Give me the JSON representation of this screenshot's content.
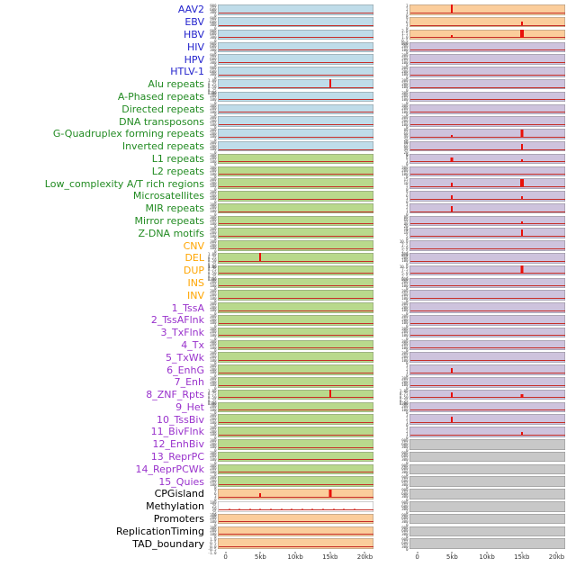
{
  "palette": {
    "label": {
      "virus": "#2424CD",
      "repeat": "#228B22",
      "sv": "#FFA500",
      "state": "#9932CC",
      "other": "#000000"
    },
    "track": {
      "blue": "#BFDCE9",
      "green": "#B9D98C",
      "orange": "#FBCD9B",
      "purple": "#CEC3DD",
      "gray": "#C8C8C8",
      "white": "#FFFFFF"
    },
    "spike": "#E91009",
    "baseline": "#C62E28"
  },
  "ytick_sets": {
    "c9": [
      "900",
      "600",
      "300",
      "0"
    ],
    "c3": [
      "300",
      "200",
      "100",
      "0"
    ],
    "p": [
      "1.00",
      "0.75",
      "0.50",
      "0.25",
      "0.00"
    ],
    "s3": [
      "3",
      "2",
      "1",
      "0"
    ],
    "s9": [
      "9",
      "6",
      "3",
      "0"
    ],
    "d2": [
      "2.0",
      "1.5",
      "1.0",
      "0.5",
      "0.0"
    ],
    "g8": [
      "80",
      "60",
      "40",
      "20",
      "0"
    ],
    "s15": [
      "15",
      "10",
      "5",
      "0"
    ],
    "d10": [
      "10.0",
      "7.5",
      "5.0",
      "2.5",
      "0.0"
    ],
    "m": [
      "100",
      "75",
      "50",
      "25",
      "0"
    ],
    "pm": [
      "1.0",
      "0.5",
      "0.0",
      "-0.5",
      "-1.0"
    ]
  },
  "chart_data": {
    "type": "line",
    "title": "",
    "xlabel": "",
    "ylabel": "",
    "columns": 2,
    "x_ticks": [
      "0",
      "5kb",
      "10kb",
      "15kb",
      "20kb"
    ],
    "x_range_kb": [
      0,
      20
    ],
    "tracks": [
      {
        "label": "AAV2",
        "cat": "virus",
        "left": {
          "bg": "blue",
          "yt": "c9",
          "spikes": []
        },
        "right": {
          "bg": "orange",
          "yt": "s3",
          "spikes": [
            {
              "kb": 5,
              "h": 1.0,
              "w": 2
            }
          ]
        }
      },
      {
        "label": "EBV",
        "cat": "virus",
        "left": {
          "bg": "blue",
          "yt": "c9",
          "spikes": []
        },
        "right": {
          "bg": "orange",
          "yt": "s9",
          "spikes": [
            {
              "kb": 15,
              "h": 0.38,
              "w": 2
            }
          ]
        }
      },
      {
        "label": "HBV",
        "cat": "virus",
        "left": {
          "bg": "blue",
          "yt": "c9",
          "spikes": []
        },
        "right": {
          "bg": "orange",
          "yt": "d2",
          "spikes": [
            {
              "kb": 5,
              "h": 0.25,
              "w": 2
            },
            {
              "kb": 15,
              "h": 1.0,
              "w": 4
            }
          ]
        }
      },
      {
        "label": "HIV",
        "cat": "virus",
        "left": {
          "bg": "blue",
          "yt": "c9",
          "spikes": []
        },
        "right": {
          "bg": "purple",
          "yt": "c3",
          "spikes": []
        }
      },
      {
        "label": "HPV",
        "cat": "virus",
        "left": {
          "bg": "blue",
          "yt": "c9",
          "spikes": []
        },
        "right": {
          "bg": "purple",
          "yt": "c3",
          "spikes": []
        }
      },
      {
        "label": "HTLV-1",
        "cat": "virus",
        "left": {
          "bg": "blue",
          "yt": "c9",
          "spikes": []
        },
        "right": {
          "bg": "purple",
          "yt": "c3",
          "spikes": []
        }
      },
      {
        "label": "Alu repeats",
        "cat": "repeat",
        "left": {
          "bg": "blue",
          "yt": "p",
          "spikes": [
            {
              "kb": 15,
              "h": 1.0,
              "w": 2
            }
          ]
        },
        "right": {
          "bg": "purple",
          "yt": "c3",
          "spikes": []
        }
      },
      {
        "label": "A-Phased repeats",
        "cat": "repeat",
        "left": {
          "bg": "blue",
          "yt": "c3",
          "spikes": []
        },
        "right": {
          "bg": "purple",
          "yt": "c3",
          "spikes": []
        }
      },
      {
        "label": "Directed repeats",
        "cat": "repeat",
        "left": {
          "bg": "blue",
          "yt": "c3",
          "spikes": []
        },
        "right": {
          "bg": "purple",
          "yt": "c3",
          "spikes": []
        }
      },
      {
        "label": "DNA transposons",
        "cat": "repeat",
        "left": {
          "bg": "blue",
          "yt": "c3",
          "spikes": []
        },
        "right": {
          "bg": "purple",
          "yt": "c3",
          "spikes": []
        }
      },
      {
        "label": "G-Quadruplex forming repeats",
        "cat": "repeat",
        "left": {
          "bg": "blue",
          "yt": "c3",
          "spikes": []
        },
        "right": {
          "bg": "purple",
          "yt": "g8",
          "spikes": [
            {
              "kb": 5,
              "h": 0.22,
              "w": 2
            },
            {
              "kb": 15,
              "h": 0.85,
              "w": 3
            }
          ]
        }
      },
      {
        "label": "Inverted repeats",
        "cat": "repeat",
        "left": {
          "bg": "blue",
          "yt": "c3",
          "spikes": []
        },
        "right": {
          "bg": "purple",
          "yt": "g8",
          "spikes": [
            {
              "kb": 15,
              "h": 0.6,
              "w": 2
            }
          ]
        }
      },
      {
        "label": "L1 repeats",
        "cat": "repeat",
        "left": {
          "bg": "green",
          "yt": "c3",
          "spikes": []
        },
        "right": {
          "bg": "purple",
          "yt": "s9",
          "spikes": [
            {
              "kb": 5,
              "h": 0.55,
              "w": 3
            },
            {
              "kb": 15,
              "h": 0.25,
              "w": 2
            }
          ]
        }
      },
      {
        "label": "L2 repeats",
        "cat": "repeat",
        "left": {
          "bg": "green",
          "yt": "c3",
          "spikes": []
        },
        "right": {
          "bg": "purple",
          "yt": "c3",
          "spikes": []
        }
      },
      {
        "label": "Low_complexity A/T rich regions",
        "cat": "repeat",
        "left": {
          "bg": "green",
          "yt": "c3",
          "spikes": []
        },
        "right": {
          "bg": "purple",
          "yt": "s15",
          "spikes": [
            {
              "kb": 5,
              "h": 0.5,
              "w": 2
            },
            {
              "kb": 15,
              "h": 0.9,
              "w": 4
            }
          ]
        }
      },
      {
        "label": "Microsatellites",
        "cat": "repeat",
        "left": {
          "bg": "green",
          "yt": "c3",
          "spikes": []
        },
        "right": {
          "bg": "purple",
          "yt": "s9",
          "spikes": [
            {
              "kb": 5,
              "h": 0.45,
              "w": 2
            },
            {
              "kb": 15,
              "h": 0.3,
              "w": 2
            }
          ]
        }
      },
      {
        "label": "MIR repeats",
        "cat": "repeat",
        "left": {
          "bg": "green",
          "yt": "c3",
          "spikes": []
        },
        "right": {
          "bg": "purple",
          "yt": "s3",
          "spikes": [
            {
              "kb": 5,
              "h": 0.65,
              "w": 2
            }
          ]
        }
      },
      {
        "label": "Mirror repeats",
        "cat": "repeat",
        "left": {
          "bg": "green",
          "yt": "c3",
          "spikes": []
        },
        "right": {
          "bg": "purple",
          "yt": "g8",
          "spikes": [
            {
              "kb": 15,
              "h": 0.28,
              "w": 2
            }
          ]
        }
      },
      {
        "label": "Z-DNA motifs",
        "cat": "repeat",
        "left": {
          "bg": "green",
          "yt": "c3",
          "spikes": []
        },
        "right": {
          "bg": "purple",
          "yt": "s15",
          "spikes": [
            {
              "kb": 15,
              "h": 0.8,
              "w": 2
            }
          ]
        }
      },
      {
        "label": "CNV",
        "cat": "sv",
        "left": {
          "bg": "green",
          "yt": "c3",
          "spikes": []
        },
        "right": {
          "bg": "purple",
          "yt": "d10",
          "spikes": []
        }
      },
      {
        "label": "DEL",
        "cat": "sv",
        "left": {
          "bg": "green",
          "yt": "p",
          "spikes": [
            {
              "kb": 5,
              "h": 1.0,
              "w": 2
            }
          ]
        },
        "right": {
          "bg": "purple",
          "yt": "c3",
          "spikes": []
        }
      },
      {
        "label": "DUP",
        "cat": "sv",
        "left": {
          "bg": "green",
          "yt": "p",
          "spikes": []
        },
        "right": {
          "bg": "purple",
          "yt": "d10",
          "spikes": [
            {
              "kb": 15,
              "h": 1.0,
              "w": 3
            }
          ]
        }
      },
      {
        "label": "INS",
        "cat": "sv",
        "left": {
          "bg": "green",
          "yt": "c3",
          "spikes": []
        },
        "right": {
          "bg": "purple",
          "yt": "c3",
          "spikes": []
        }
      },
      {
        "label": "INV",
        "cat": "sv",
        "left": {
          "bg": "green",
          "yt": "c3",
          "spikes": []
        },
        "right": {
          "bg": "purple",
          "yt": "c3",
          "spikes": []
        }
      },
      {
        "label": "1_TssA",
        "cat": "state",
        "left": {
          "bg": "green",
          "yt": "c3",
          "spikes": []
        },
        "right": {
          "bg": "purple",
          "yt": "c3",
          "spikes": []
        }
      },
      {
        "label": "2_TssAFlnk",
        "cat": "state",
        "left": {
          "bg": "green",
          "yt": "c3",
          "spikes": []
        },
        "right": {
          "bg": "purple",
          "yt": "c3",
          "spikes": []
        }
      },
      {
        "label": "3_TxFlnk",
        "cat": "state",
        "left": {
          "bg": "green",
          "yt": "c3",
          "spikes": []
        },
        "right": {
          "bg": "purple",
          "yt": "c3",
          "spikes": []
        }
      },
      {
        "label": "4_Tx",
        "cat": "state",
        "left": {
          "bg": "green",
          "yt": "c3",
          "spikes": []
        },
        "right": {
          "bg": "purple",
          "yt": "c3",
          "spikes": []
        }
      },
      {
        "label": "5_TxWk",
        "cat": "state",
        "left": {
          "bg": "green",
          "yt": "c3",
          "spikes": []
        },
        "right": {
          "bg": "purple",
          "yt": "c3",
          "spikes": []
        }
      },
      {
        "label": "6_EnhG",
        "cat": "state",
        "left": {
          "bg": "green",
          "yt": "c3",
          "spikes": []
        },
        "right": {
          "bg": "purple",
          "yt": "s3",
          "spikes": [
            {
              "kb": 5,
              "h": 0.6,
              "w": 2
            }
          ]
        }
      },
      {
        "label": "7_Enh",
        "cat": "state",
        "left": {
          "bg": "green",
          "yt": "c3",
          "spikes": []
        },
        "right": {
          "bg": "purple",
          "yt": "c3",
          "spikes": []
        }
      },
      {
        "label": "8_ZNF_Rpts",
        "cat": "state",
        "left": {
          "bg": "green",
          "yt": "p",
          "spikes": [
            {
              "kb": 15,
              "h": 0.9,
              "w": 2
            }
          ]
        },
        "right": {
          "bg": "purple",
          "yt": "p",
          "spikes": [
            {
              "kb": 5,
              "h": 0.65,
              "w": 2
            },
            {
              "kb": 15,
              "h": 0.4,
              "w": 3
            }
          ]
        }
      },
      {
        "label": "9_Het",
        "cat": "state",
        "left": {
          "bg": "green",
          "yt": "c3",
          "spikes": []
        },
        "right": {
          "bg": "purple",
          "yt": "c3",
          "spikes": []
        }
      },
      {
        "label": "10_TssBiv",
        "cat": "state",
        "left": {
          "bg": "green",
          "yt": "c3",
          "spikes": []
        },
        "right": {
          "bg": "purple",
          "yt": "s3",
          "spikes": [
            {
              "kb": 5,
              "h": 0.65,
              "w": 2
            }
          ]
        }
      },
      {
        "label": "11_BivFlnk",
        "cat": "state",
        "left": {
          "bg": "green",
          "yt": "c3",
          "spikes": []
        },
        "right": {
          "bg": "purple",
          "yt": "s3",
          "spikes": [
            {
              "kb": 15,
              "h": 0.3,
              "w": 2
            }
          ]
        }
      },
      {
        "label": "12_EnhBiv",
        "cat": "state",
        "left": {
          "bg": "green",
          "yt": "c3",
          "spikes": []
        },
        "right": {
          "bg": "gray",
          "yt": "c9",
          "spikes": []
        }
      },
      {
        "label": "13_ReprPC",
        "cat": "state",
        "left": {
          "bg": "green",
          "yt": "c3",
          "spikes": []
        },
        "right": {
          "bg": "gray",
          "yt": "c9",
          "spikes": []
        }
      },
      {
        "label": "14_ReprPCWk",
        "cat": "state",
        "left": {
          "bg": "green",
          "yt": "c3",
          "spikes": []
        },
        "right": {
          "bg": "gray",
          "yt": "c9",
          "spikes": []
        }
      },
      {
        "label": "15_Quies",
        "cat": "state",
        "left": {
          "bg": "green",
          "yt": "c3",
          "spikes": []
        },
        "right": {
          "bg": "gray",
          "yt": "c9",
          "spikes": []
        }
      },
      {
        "label": "CPGisland",
        "cat": "other",
        "left": {
          "bg": "orange",
          "yt": "s9",
          "spikes": [
            {
              "kb": 5,
              "h": 0.45,
              "w": 2
            },
            {
              "kb": 15,
              "h": 0.85,
              "w": 3
            }
          ]
        },
        "right": {
          "bg": "gray",
          "yt": "c9",
          "spikes": []
        }
      },
      {
        "label": "Methylation",
        "cat": "other",
        "left": {
          "bg": "white",
          "yt": "m",
          "spikes": [
            {
              "kb": 0.5,
              "h": 0.12,
              "w": 1
            },
            {
              "kb": 2,
              "h": 0.1,
              "w": 1
            },
            {
              "kb": 3.5,
              "h": 0.14,
              "w": 1
            },
            {
              "kb": 5,
              "h": 0.1,
              "w": 1
            },
            {
              "kb": 6.5,
              "h": 0.12,
              "w": 1
            },
            {
              "kb": 8,
              "h": 0.1,
              "w": 1
            },
            {
              "kb": 9.5,
              "h": 0.14,
              "w": 1
            },
            {
              "kb": 11,
              "h": 0.1,
              "w": 1
            },
            {
              "kb": 12.5,
              "h": 0.12,
              "w": 1
            },
            {
              "kb": 14,
              "h": 0.1,
              "w": 1
            },
            {
              "kb": 15.5,
              "h": 0.14,
              "w": 1
            },
            {
              "kb": 17,
              "h": 0.1,
              "w": 1
            },
            {
              "kb": 18.5,
              "h": 0.12,
              "w": 1
            }
          ]
        },
        "right": {
          "bg": "gray",
          "yt": "c9",
          "spikes": []
        }
      },
      {
        "label": "Promoters",
        "cat": "other",
        "left": {
          "bg": "orange",
          "yt": "c3",
          "spikes": []
        },
        "right": {
          "bg": "gray",
          "yt": "c9",
          "spikes": []
        }
      },
      {
        "label": "ReplicationTiming",
        "cat": "other",
        "left": {
          "bg": "orange",
          "yt": "c3",
          "spikes": []
        },
        "right": {
          "bg": "gray",
          "yt": "c9",
          "spikes": []
        }
      },
      {
        "label": "TAD_boundary",
        "cat": "other",
        "left": {
          "bg": "orange",
          "yt": "pm",
          "spikes": []
        },
        "right": {
          "bg": "gray",
          "yt": "c9",
          "spikes": []
        }
      }
    ]
  }
}
